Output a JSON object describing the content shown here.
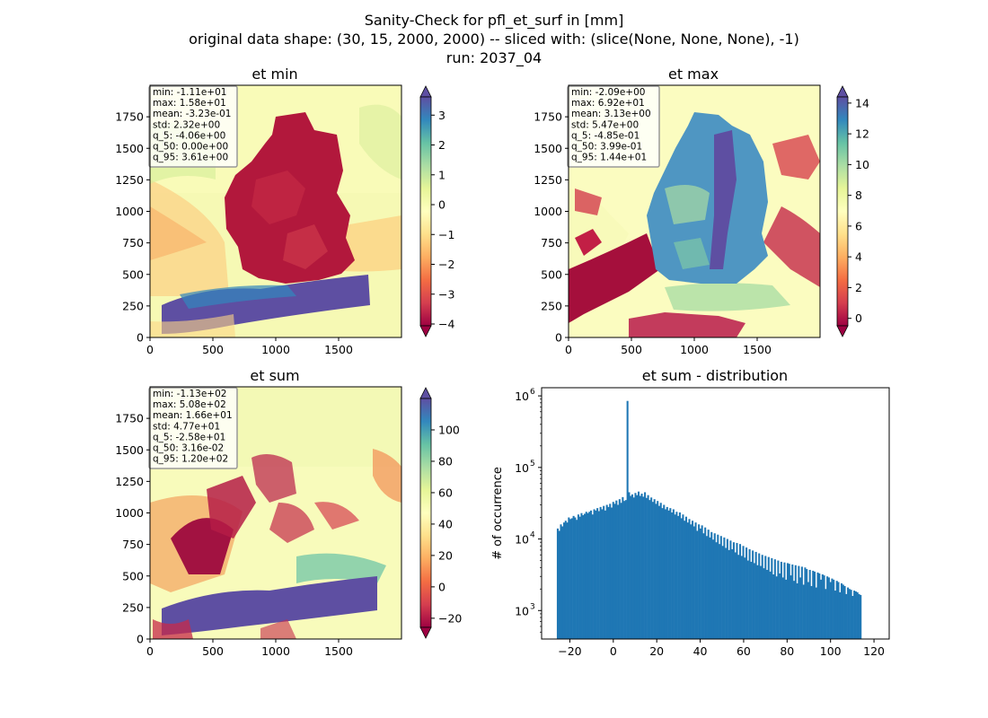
{
  "suptitle": {
    "line1": "Sanity-Check for pfl_et_surf in [mm]",
    "line2": "original data shape: (30, 15, 2000, 2000) -- sliced with: (slice(None, None, None), -1)",
    "line3": "run: 2037_04"
  },
  "colormap": "Spectral",
  "colors": {
    "bar": "#1f77b4",
    "axes": "#000000",
    "stats_box_edge": "#999999"
  },
  "chart_data": [
    {
      "type": "heatmap",
      "title": "et min",
      "xlim": [
        0,
        2000
      ],
      "ylim": [
        0,
        2000
      ],
      "xticks": [
        0,
        500,
        1000,
        1500
      ],
      "yticks": [
        0,
        250,
        500,
        750,
        1000,
        1250,
        1500,
        1750
      ],
      "colorbar": {
        "range": [
          -4.06,
          3.61
        ],
        "ticks": [
          -4,
          -3,
          -2,
          -1,
          0,
          1,
          2,
          3
        ],
        "extend": "both"
      },
      "stats": [
        "min: -1.11e+01",
        "max: 1.58e+01",
        "mean: -3.23e-01",
        "std: 2.32e+00",
        "q_5: -4.06e+00",
        "q_50: 0.00e+00",
        "q_95: 3.61e+00"
      ]
    },
    {
      "type": "heatmap",
      "title": "et max",
      "xlim": [
        0,
        2000
      ],
      "ylim": [
        0,
        2000
      ],
      "xticks": [
        0,
        500,
        1000,
        1500
      ],
      "yticks": [
        0,
        250,
        500,
        750,
        1000,
        1250,
        1500,
        1750
      ],
      "colorbar": {
        "range": [
          -0.485,
          14.4
        ],
        "ticks": [
          0,
          2,
          4,
          6,
          8,
          10,
          12,
          14
        ],
        "extend": "both"
      },
      "stats": [
        "min: -2.09e+00",
        "max: 6.92e+01",
        "mean: 3.13e+00",
        "std: 5.47e+00",
        "q_5: -4.85e-01",
        "q_50: 3.99e-01",
        "q_95: 1.44e+01"
      ]
    },
    {
      "type": "heatmap",
      "title": "et sum",
      "xlim": [
        0,
        2000
      ],
      "ylim": [
        0,
        2000
      ],
      "xticks": [
        0,
        500,
        1000,
        1500
      ],
      "yticks": [
        0,
        250,
        500,
        750,
        1000,
        1250,
        1500,
        1750
      ],
      "colorbar": {
        "range": [
          -25.8,
          120
        ],
        "ticks": [
          -20,
          0,
          20,
          40,
          60,
          80,
          100
        ],
        "extend": "both"
      },
      "stats": [
        "min: -1.13e+02",
        "max: 5.08e+02",
        "mean: 1.66e+01",
        "std: 4.77e+01",
        "q_5: -2.58e+01",
        "q_50: 3.16e-02",
        "q_95: 1.20e+02"
      ]
    },
    {
      "type": "bar",
      "title": "et sum - distribution",
      "ylabel": "# of occurrence",
      "xlabel": "",
      "xlim": [
        -33,
        127
      ],
      "ylim": [
        400,
        1300000
      ],
      "yscale": "log",
      "xticks": [
        -20,
        0,
        20,
        40,
        60,
        80,
        100,
        120
      ],
      "yticks": [
        {
          "value": 1000,
          "label": "10",
          "exp": "3"
        },
        {
          "value": 10000,
          "label": "10",
          "exp": "4"
        },
        {
          "value": 100000,
          "label": "10",
          "exp": "5"
        },
        {
          "value": 1000000,
          "label": "10",
          "exp": "6"
        }
      ],
      "bin_start": -26,
      "bin_width": 0.73,
      "values": [
        14000,
        13000,
        16000,
        15000,
        17000,
        18000,
        17000,
        20000,
        19000,
        19500,
        21000,
        20000,
        18500,
        22000,
        20500,
        23000,
        21500,
        22500,
        24000,
        23000,
        24000,
        25000,
        22000,
        26000,
        25000,
        27000,
        24500,
        28000,
        26000,
        29000,
        25000,
        30000,
        28000,
        31000,
        27500,
        33000,
        31000,
        34500,
        30000,
        36000,
        32000,
        38500,
        34000,
        35000,
        850000,
        45000,
        40000,
        42000,
        38000,
        44000,
        41000,
        46000,
        40000,
        43000,
        39000,
        45000,
        37500,
        41000,
        35000,
        38000,
        33000,
        36000,
        31000,
        34000,
        29000,
        32000,
        27000,
        30000,
        26000,
        28000,
        25000,
        27000,
        23500,
        26000,
        22000,
        24000,
        21000,
        23500,
        19500,
        22000,
        18000,
        20500,
        17000,
        19000,
        16000,
        18000,
        15000,
        17000,
        13000,
        16000,
        14000,
        15500,
        12000,
        14500,
        11000,
        13500,
        10500,
        12500,
        9800,
        12000,
        9000,
        11500,
        8500,
        11000,
        8000,
        10500,
        7500,
        10000,
        7000,
        9500,
        7200,
        9000,
        6500,
        8800,
        6000,
        8500,
        5800,
        8000,
        5500,
        7600,
        5000,
        7200,
        4800,
        6900,
        4600,
        6600,
        4300,
        6300,
        4200,
        6000,
        3900,
        5800,
        3700,
        5600,
        3500,
        5400,
        3200,
        5200,
        3000,
        5000,
        3300,
        4800,
        2900,
        4700,
        2700,
        4600,
        4500,
        3100,
        4400,
        2600,
        4300,
        2400,
        4200,
        2900,
        4100,
        2300,
        4000,
        3800,
        2500,
        3700,
        2200,
        3600,
        3500,
        2100,
        3400,
        3300,
        2700,
        3200,
        3100,
        2000,
        3000,
        2900,
        2500,
        2800,
        2700,
        1900,
        2600,
        2500,
        1800,
        2400,
        2300,
        2200,
        1700,
        2100,
        2000,
        1950,
        1600,
        1900,
        1850,
        1800,
        1700,
        1650
      ]
    }
  ]
}
